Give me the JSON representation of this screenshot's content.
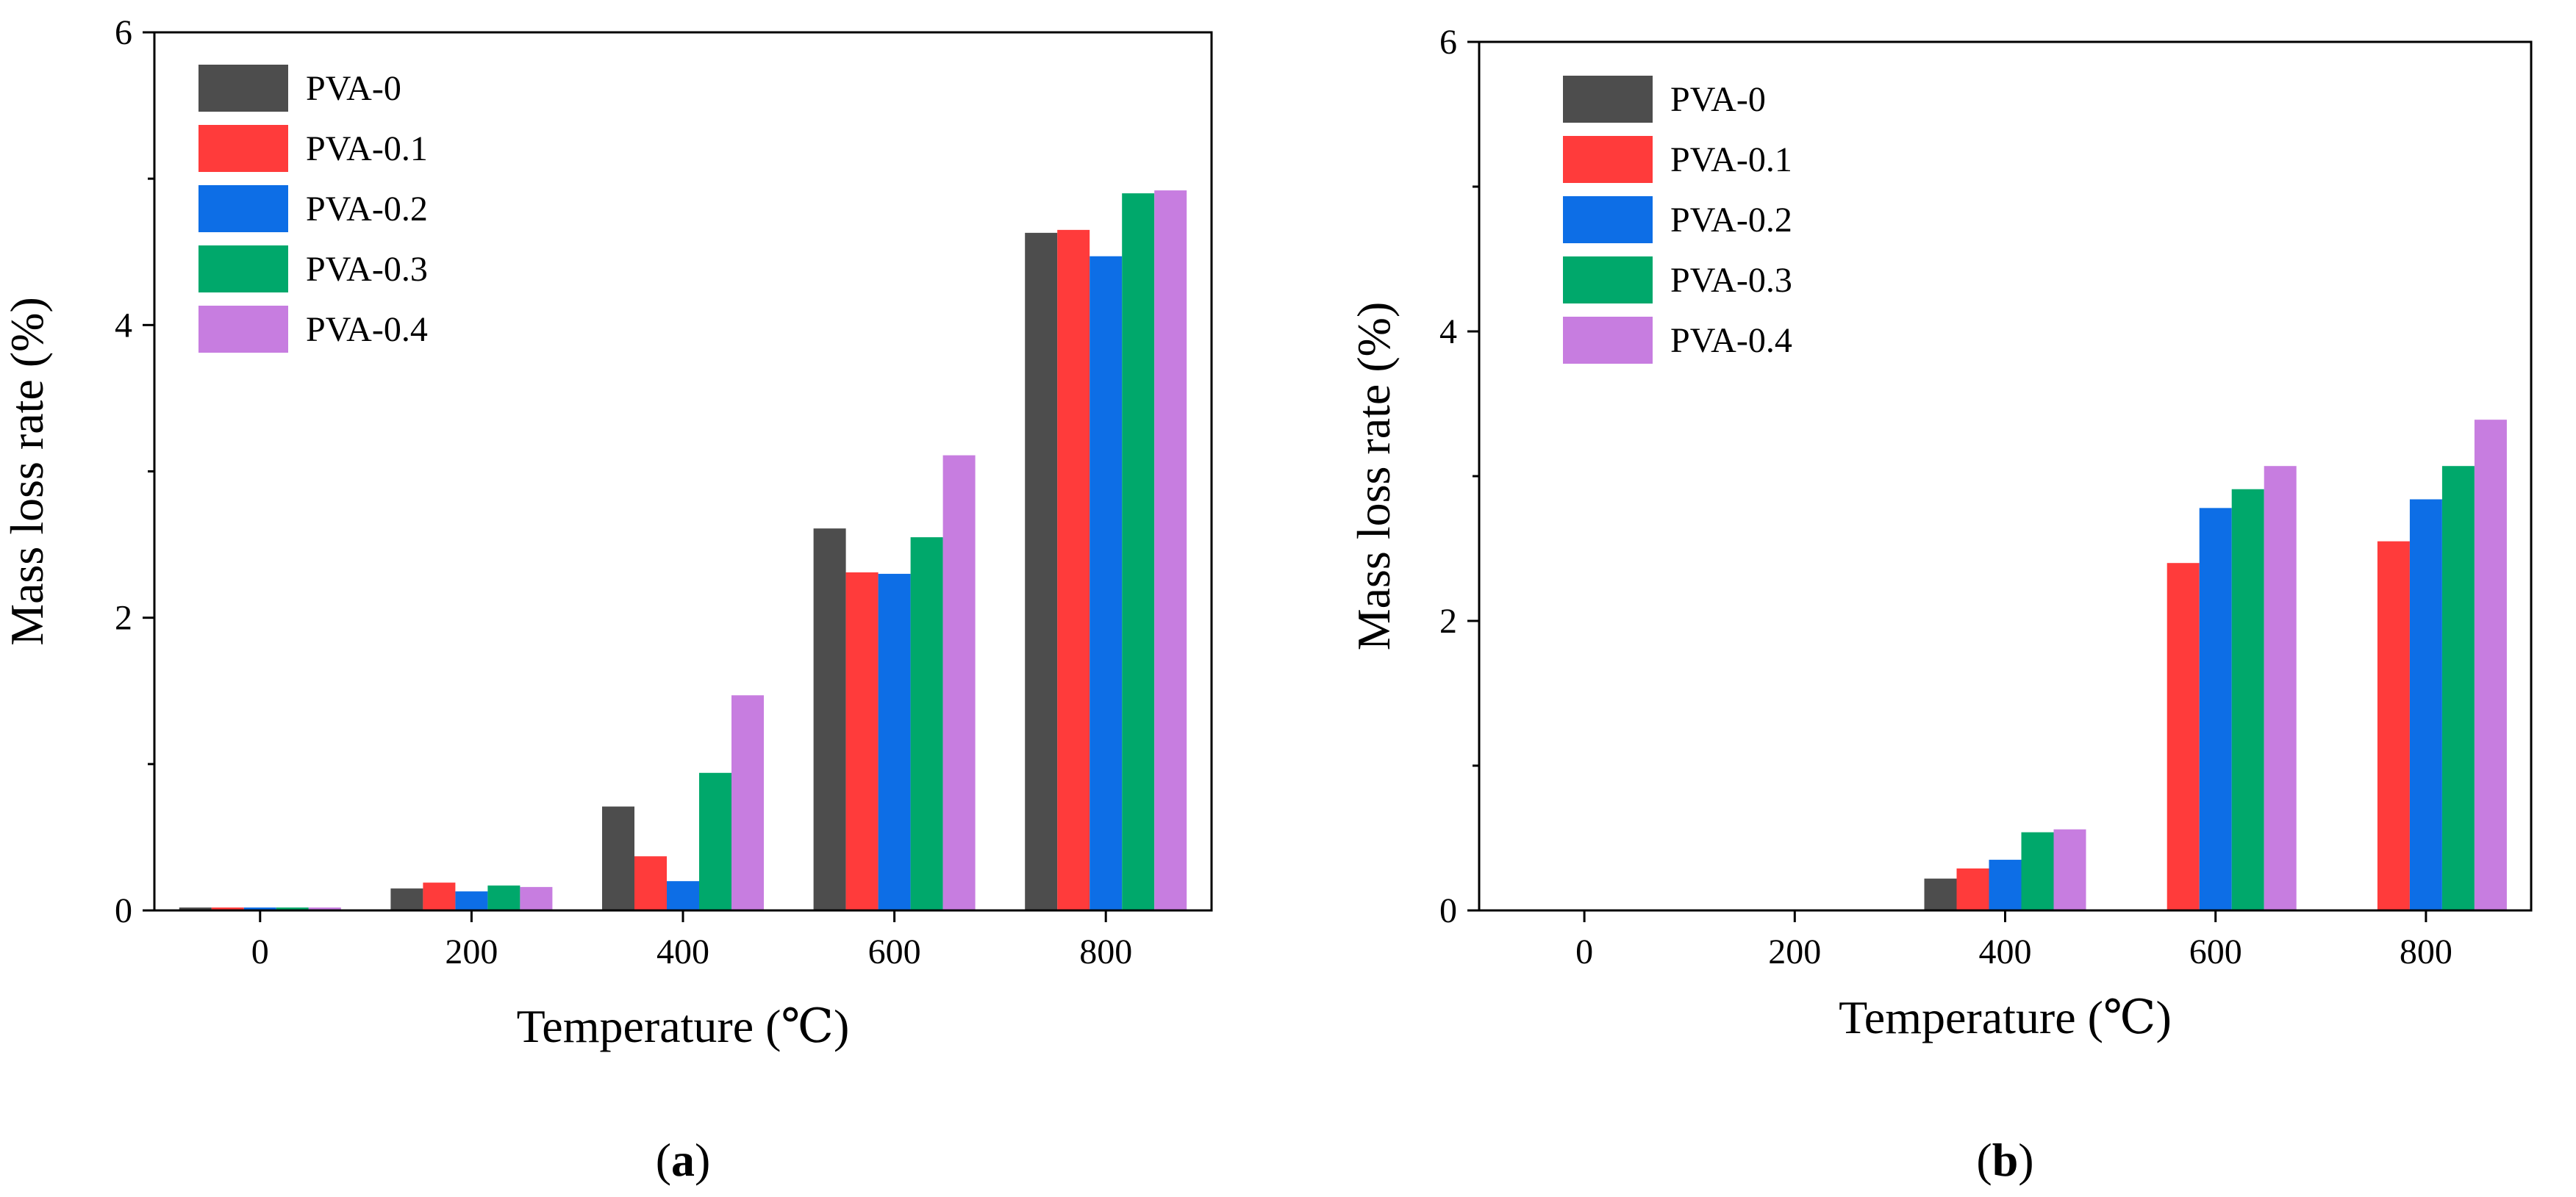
{
  "chart_data": [
    {
      "type": "bar",
      "panel_label": "a",
      "xlabel": "Temperature (℃)",
      "ylabel": "Mass loss rate (%)",
      "categories": [
        "0",
        "200",
        "400",
        "600",
        "800"
      ],
      "ylim": [
        0,
        6
      ],
      "yticks": [
        "0",
        "2",
        "4",
        "6"
      ],
      "legend_position": "top-left",
      "series": [
        {
          "name": "PVA-0",
          "color": "#4d4d4d",
          "values": [
            0.02,
            0.15,
            0.71,
            2.61,
            4.63
          ]
        },
        {
          "name": "PVA-0.1",
          "color": "#ff3b3b",
          "values": [
            0.02,
            0.19,
            0.37,
            2.31,
            4.65
          ]
        },
        {
          "name": "PVA-0.2",
          "color": "#0d6ee6",
          "values": [
            0.02,
            0.13,
            0.2,
            2.3,
            4.47
          ]
        },
        {
          "name": "PVA-0.3",
          "color": "#00a86b",
          "values": [
            0.02,
            0.17,
            0.94,
            2.55,
            4.9
          ]
        },
        {
          "name": "PVA-0.4",
          "color": "#c77de0",
          "values": [
            0.02,
            0.16,
            1.47,
            3.11,
            4.92
          ]
        }
      ]
    },
    {
      "type": "bar",
      "panel_label": "b",
      "xlabel": "Temperature (℃)",
      "ylabel": "Mass loss rate (%)",
      "categories": [
        "0",
        "200",
        "400",
        "600",
        "800"
      ],
      "ylim": [
        0,
        6
      ],
      "yticks": [
        "0",
        "2",
        "4",
        "6"
      ],
      "legend_position": "top-left",
      "series": [
        {
          "name": "PVA-0",
          "color": "#4d4d4d",
          "values": [
            0.0,
            0.0,
            0.22,
            0.0,
            0.0
          ]
        },
        {
          "name": "PVA-0.1",
          "color": "#ff3b3b",
          "values": [
            0.0,
            0.0,
            0.29,
            2.4,
            2.55
          ]
        },
        {
          "name": "PVA-0.2",
          "color": "#0d6ee6",
          "values": [
            0.0,
            0.0,
            0.35,
            2.78,
            2.84
          ]
        },
        {
          "name": "PVA-0.3",
          "color": "#00a86b",
          "values": [
            0.0,
            0.0,
            0.54,
            2.91,
            3.07
          ]
        },
        {
          "name": "PVA-0.4",
          "color": "#c77de0",
          "values": [
            0.0,
            0.0,
            0.56,
            3.07,
            3.39
          ]
        }
      ]
    }
  ]
}
